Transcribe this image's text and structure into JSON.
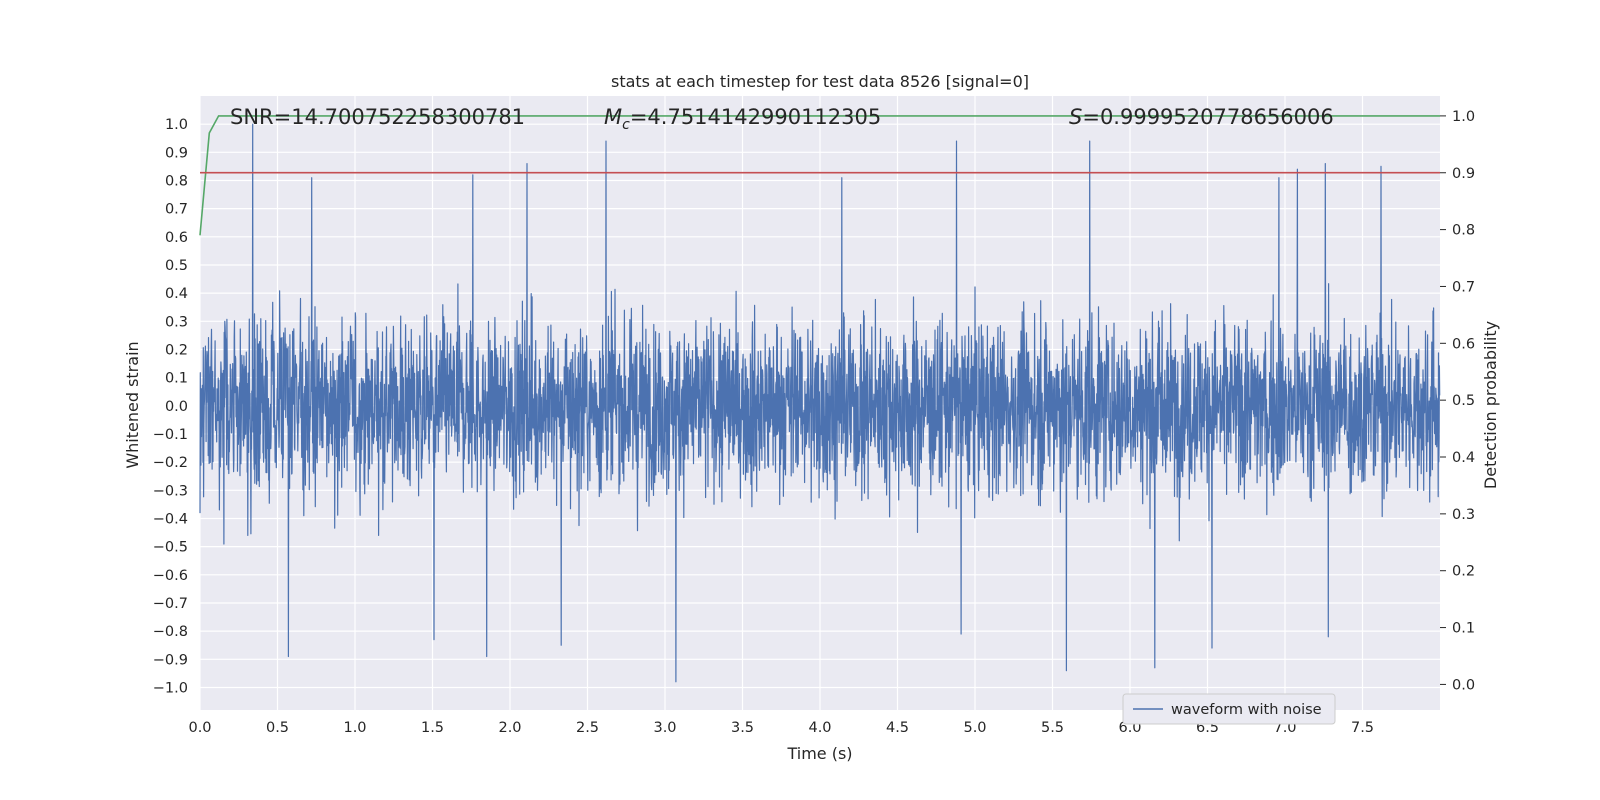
{
  "chart_data": {
    "type": "line",
    "title": "stats at each timestep for test data 8526 [signal=0]",
    "xlabel": "Time (s)",
    "ylabel": "Whitened strain",
    "y2label": "Detection probability",
    "xlim": [
      0.0,
      8.0
    ],
    "ylim": [
      -1.08,
      1.1
    ],
    "y2lim": [
      -0.045,
      1.035
    ],
    "x_ticks": [
      "0.0",
      "0.5",
      "1.0",
      "1.5",
      "2.0",
      "2.5",
      "3.0",
      "3.5",
      "4.0",
      "4.5",
      "5.0",
      "5.5",
      "6.0",
      "6.5",
      "7.0",
      "7.5"
    ],
    "x_tick_values": [
      0.0,
      0.5,
      1.0,
      1.5,
      2.0,
      2.5,
      3.0,
      3.5,
      4.0,
      4.5,
      5.0,
      5.5,
      6.0,
      6.5,
      7.0,
      7.5
    ],
    "y_ticks": [
      "−1.0",
      "−0.9",
      "−0.8",
      "−0.7",
      "−0.6",
      "−0.5",
      "−0.4",
      "−0.3",
      "−0.2",
      "−0.1",
      "0.0",
      "0.1",
      "0.2",
      "0.3",
      "0.4",
      "0.5",
      "0.6",
      "0.7",
      "0.8",
      "0.9",
      "1.0"
    ],
    "y_tick_values": [
      -1.0,
      -0.9,
      -0.8,
      -0.7,
      -0.6,
      -0.5,
      -0.4,
      -0.3,
      -0.2,
      -0.1,
      0.0,
      0.1,
      0.2,
      0.3,
      0.4,
      0.5,
      0.6,
      0.7,
      0.8,
      0.9,
      1.0
    ],
    "y2_ticks": [
      "0.0",
      "0.1",
      "0.2",
      "0.3",
      "0.4",
      "0.5",
      "0.6",
      "0.7",
      "0.8",
      "0.9",
      "1.0"
    ],
    "y2_tick_values": [
      0.0,
      0.1,
      0.2,
      0.3,
      0.4,
      0.5,
      0.6,
      0.7,
      0.8,
      0.9,
      1.0
    ],
    "grid": true,
    "legend": {
      "position": "lower-right",
      "entries": [
        "waveform with noise"
      ]
    },
    "annotations": {
      "snr": "SNR=14.700752258300781",
      "mc_symbol": "M",
      "mc_subscript": "c",
      "mc_value": "=4.7514142990112305",
      "s_symbol": "S",
      "s_value": "=0.9999520778656006"
    },
    "series": [
      {
        "name": "waveform with noise",
        "axis": "left",
        "color": "#4c72b0",
        "kind": "noise",
        "sample_rate": 512,
        "envelope_typical_positive": 0.45,
        "envelope_typical_negative": -0.45,
        "peak_max": [
          {
            "x": 0.34,
            "y": 1.0
          },
          {
            "x": 2.62,
            "y": 0.94
          },
          {
            "x": 4.88,
            "y": 0.94
          },
          {
            "x": 5.74,
            "y": 0.94
          },
          {
            "x": 2.11,
            "y": 0.86
          },
          {
            "x": 7.26,
            "y": 0.86
          },
          {
            "x": 7.62,
            "y": 0.85
          },
          {
            "x": 7.08,
            "y": 0.84
          },
          {
            "x": 6.96,
            "y": 0.81
          },
          {
            "x": 1.76,
            "y": 0.82
          },
          {
            "x": 4.14,
            "y": 0.81
          },
          {
            "x": 0.72,
            "y": 0.81
          }
        ],
        "trough_min": [
          {
            "x": 3.07,
            "y": -0.98
          },
          {
            "x": 5.59,
            "y": -0.94
          },
          {
            "x": 6.16,
            "y": -0.93
          },
          {
            "x": 0.57,
            "y": -0.89
          },
          {
            "x": 1.85,
            "y": -0.89
          },
          {
            "x": 6.53,
            "y": -0.86
          },
          {
            "x": 2.33,
            "y": -0.85
          },
          {
            "x": 1.51,
            "y": -0.83
          },
          {
            "x": 7.28,
            "y": -0.82
          },
          {
            "x": 4.91,
            "y": -0.81
          }
        ]
      },
      {
        "name": "detection probability",
        "axis": "right",
        "color": "#55a868",
        "x": [
          0.0,
          0.06,
          0.12,
          0.2,
          8.0
        ],
        "y": [
          0.79,
          0.97,
          1.0,
          1.0,
          1.0
        ]
      },
      {
        "name": "threshold",
        "axis": "right",
        "color": "#c44e52",
        "x": [
          0.0,
          8.0
        ],
        "y": [
          0.9,
          0.9
        ]
      }
    ]
  }
}
